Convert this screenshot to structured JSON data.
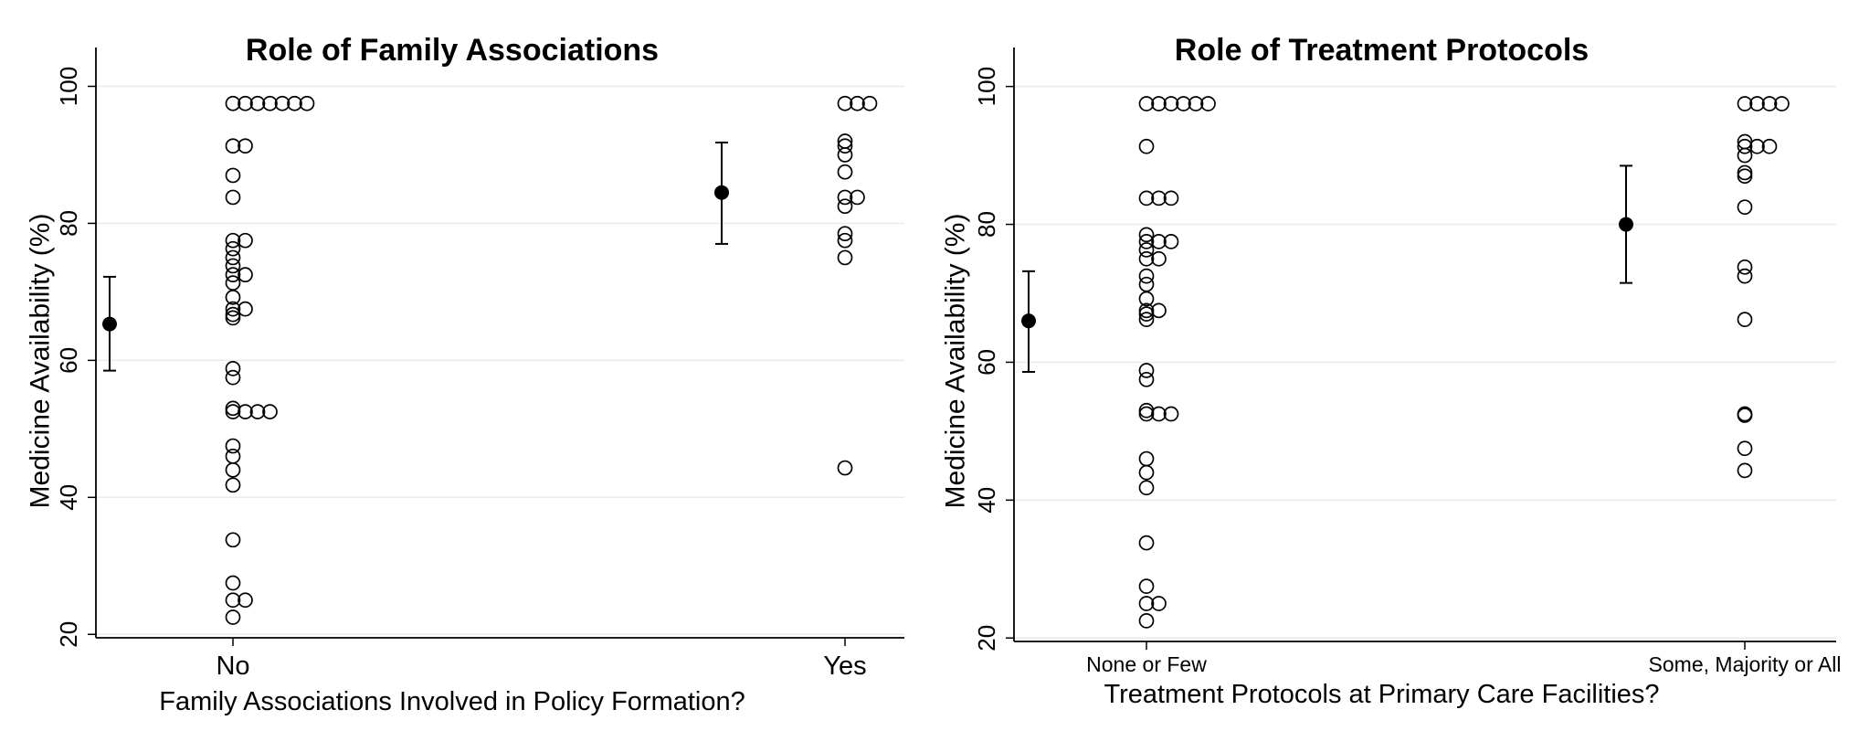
{
  "chart_data": [
    {
      "type": "scatter",
      "title": "Role of Family Associations",
      "xlabel": "Family Associations Involved in Policy Formation?",
      "ylabel": "Medicine Availability (%)",
      "categories": [
        "No",
        "Yes"
      ],
      "ylim": [
        19.5,
        103
      ],
      "yticks": [
        20,
        40,
        60,
        80,
        100
      ],
      "grid": true,
      "series": [
        {
          "marker": "hollow-circle",
          "points": {
            "No": [
              97.5,
              97.5,
              97.5,
              97.5,
              97.5,
              97.5,
              97.5,
              91.3,
              91.3,
              87.0,
              83.8,
              77.5,
              77.5,
              76.3,
              75.0,
              73.8,
              72.5,
              72.5,
              71.3,
              69.2,
              67.5,
              67.5,
              66.7,
              66.2,
              58.8,
              57.5,
              53.0,
              52.5,
              52.5,
              52.5,
              52.5,
              47.5,
              46.0,
              44.0,
              41.8,
              33.8,
              27.5,
              25.0,
              25.0,
              22.5
            ],
            "Yes": [
              97.5,
              97.5,
              97.5,
              92.0,
              91.3,
              90.0,
              87.5,
              83.8,
              83.8,
              82.5,
              78.5,
              77.5,
              75.0,
              44.3
            ]
          }
        },
        {
          "marker": "filled-circle-errorbar",
          "means": [
            {
              "category": "No",
              "mean": 65.3,
              "low": 58.5,
              "high": 72.2
            },
            {
              "category": "Yes",
              "mean": 84.5,
              "low": 77.0,
              "high": 91.8
            }
          ]
        }
      ]
    },
    {
      "type": "scatter",
      "title": "Role of Treatment Protocols",
      "xlabel": "Treatment Protocols at Primary Care Facilities?",
      "ylabel": "Medicine Availability (%)",
      "categories": [
        "None or Few",
        "Some, Majority or All"
      ],
      "ylim": [
        19.5,
        103
      ],
      "yticks": [
        20,
        40,
        60,
        80,
        100
      ],
      "grid": true,
      "series": [
        {
          "marker": "hollow-circle",
          "points": {
            "None or Few": [
              97.5,
              97.5,
              97.5,
              97.5,
              97.5,
              97.5,
              91.3,
              83.8,
              83.8,
              83.8,
              78.5,
              77.5,
              77.5,
              77.5,
              76.3,
              75.0,
              75.0,
              72.5,
              71.3,
              69.2,
              67.5,
              67.5,
              67.0,
              66.2,
              58.8,
              57.5,
              53.0,
              52.5,
              52.5,
              52.5,
              46.0,
              44.0,
              41.8,
              33.8,
              27.5,
              25.0,
              25.0,
              22.5
            ],
            "Some, Majority or All": [
              97.5,
              97.5,
              97.5,
              97.5,
              92.0,
              91.3,
              91.3,
              91.3,
              90.0,
              87.5,
              87.0,
              82.5,
              73.8,
              72.5,
              66.2,
              52.5,
              52.3,
              47.5,
              44.3
            ]
          }
        },
        {
          "marker": "filled-circle-errorbar",
          "means": [
            {
              "category": "None or Few",
              "mean": 66.0,
              "low": 58.6,
              "high": 73.2
            },
            {
              "category": "Some, Majority or All",
              "mean": 80.0,
              "low": 71.5,
              "high": 88.5
            }
          ]
        }
      ]
    }
  ],
  "colors": {
    "marker": "#000000",
    "grid": "#eaeaea",
    "axis": "#000000",
    "panel_divider": "#f4f4f4"
  }
}
